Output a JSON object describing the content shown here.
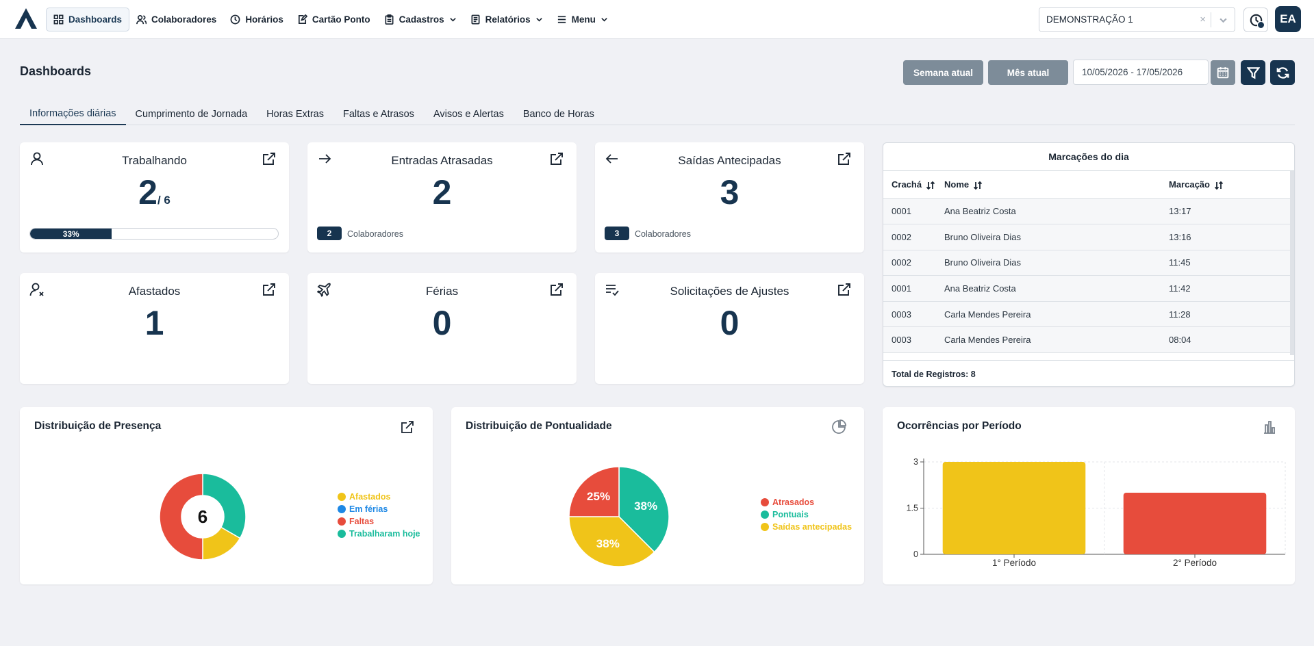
{
  "nav": {
    "items": [
      {
        "label": "Dashboards",
        "icon": "dashboard-icon",
        "active": true
      },
      {
        "label": "Colaboradores",
        "icon": "users-icon"
      },
      {
        "label": "Horários",
        "icon": "clock-icon"
      },
      {
        "label": "Cartão Ponto",
        "icon": "edit-card-icon"
      },
      {
        "label": "Cadastros",
        "icon": "clipboard-icon",
        "dropdown": true
      },
      {
        "label": "Relatórios",
        "icon": "report-icon",
        "dropdown": true
      },
      {
        "label": "Menu",
        "icon": "menu-icon",
        "dropdown": true
      }
    ]
  },
  "company_select": {
    "value": "DEMONSTRAÇÃO 1",
    "clear": "×"
  },
  "user": {
    "initials": "EA"
  },
  "page": {
    "title": "Dashboards"
  },
  "filters": {
    "week_label": "Semana atual",
    "month_label": "Mês atual",
    "date_range": "10/05/2026 - 17/05/2026"
  },
  "tabs": [
    {
      "label": "Informações diárias",
      "active": true
    },
    {
      "label": "Cumprimento de Jornada"
    },
    {
      "label": "Horas Extras"
    },
    {
      "label": "Faltas e Atrasos"
    },
    {
      "label": "Avisos e Alertas"
    },
    {
      "label": "Banco de Horas"
    }
  ],
  "kpis": {
    "trabalhando": {
      "title": "Trabalhando",
      "value": "2",
      "total": "/ 6",
      "progress_label": "33%",
      "progress": 0.33
    },
    "entradas": {
      "title": "Entradas Atrasadas",
      "value": "2",
      "badge": "2",
      "badge_label": "Colaboradores"
    },
    "saidas": {
      "title": "Saídas Antecipadas",
      "value": "3",
      "badge": "3",
      "badge_label": "Colaboradores"
    },
    "afastados": {
      "title": "Afastados",
      "value": "1"
    },
    "ferias": {
      "title": "Férias",
      "value": "0"
    },
    "solicitacoes": {
      "title": "Solicitações de Ajustes",
      "value": "0"
    }
  },
  "marks": {
    "title": "Marcações do dia",
    "columns": [
      "Crachá",
      "Nome",
      "Marcação"
    ],
    "rows": [
      [
        "0001",
        "Ana Beatriz Costa",
        "13:17"
      ],
      [
        "0002",
        "Bruno Oliveira Dias",
        "13:16"
      ],
      [
        "0002",
        "Bruno Oliveira Dias",
        "11:45"
      ],
      [
        "0001",
        "Ana Beatriz Costa",
        "11:42"
      ],
      [
        "0003",
        "Carla Mendes Pereira",
        "11:28"
      ],
      [
        "0003",
        "Carla Mendes Pereira",
        "08:04"
      ]
    ],
    "footer": "Total de Registros: 8"
  },
  "colors": {
    "primary": "#17344f",
    "yellow": "#f0c419",
    "red": "#e74c3c",
    "green": "#1abc9c",
    "blue": "#1e88e5",
    "gray_button": "#7d8c99"
  },
  "chart_data": [
    {
      "type": "pie",
      "title": "Distribuição de Presença",
      "variant": "donut",
      "center_label": "6",
      "categories": [
        "Afastados",
        "Em férias",
        "Faltas",
        "Trabalharam hoje"
      ],
      "values": [
        1,
        0,
        3,
        2
      ],
      "colors": [
        "#f0c419",
        "#1e88e5",
        "#e74c3c",
        "#1abc9c"
      ],
      "legend": "right"
    },
    {
      "type": "pie",
      "title": "Distribuição de Pontualidade",
      "categories": [
        "Atrasados",
        "Pontuais",
        "Saídas antecipadas"
      ],
      "values": [
        2,
        3,
        3
      ],
      "labels": [
        "25%",
        "38%",
        "38%"
      ],
      "colors": [
        "#e74c3c",
        "#1abc9c",
        "#f0c419"
      ],
      "legend": "right"
    },
    {
      "type": "bar",
      "title": "Ocorrências por Período",
      "categories": [
        "1° Período",
        "2° Período"
      ],
      "values": [
        3,
        2
      ],
      "colors": [
        "#f0c419",
        "#e74c3c"
      ],
      "ylim": [
        0,
        3
      ],
      "yticks": [
        "0",
        "1.5",
        "3"
      ],
      "grid": true
    }
  ]
}
